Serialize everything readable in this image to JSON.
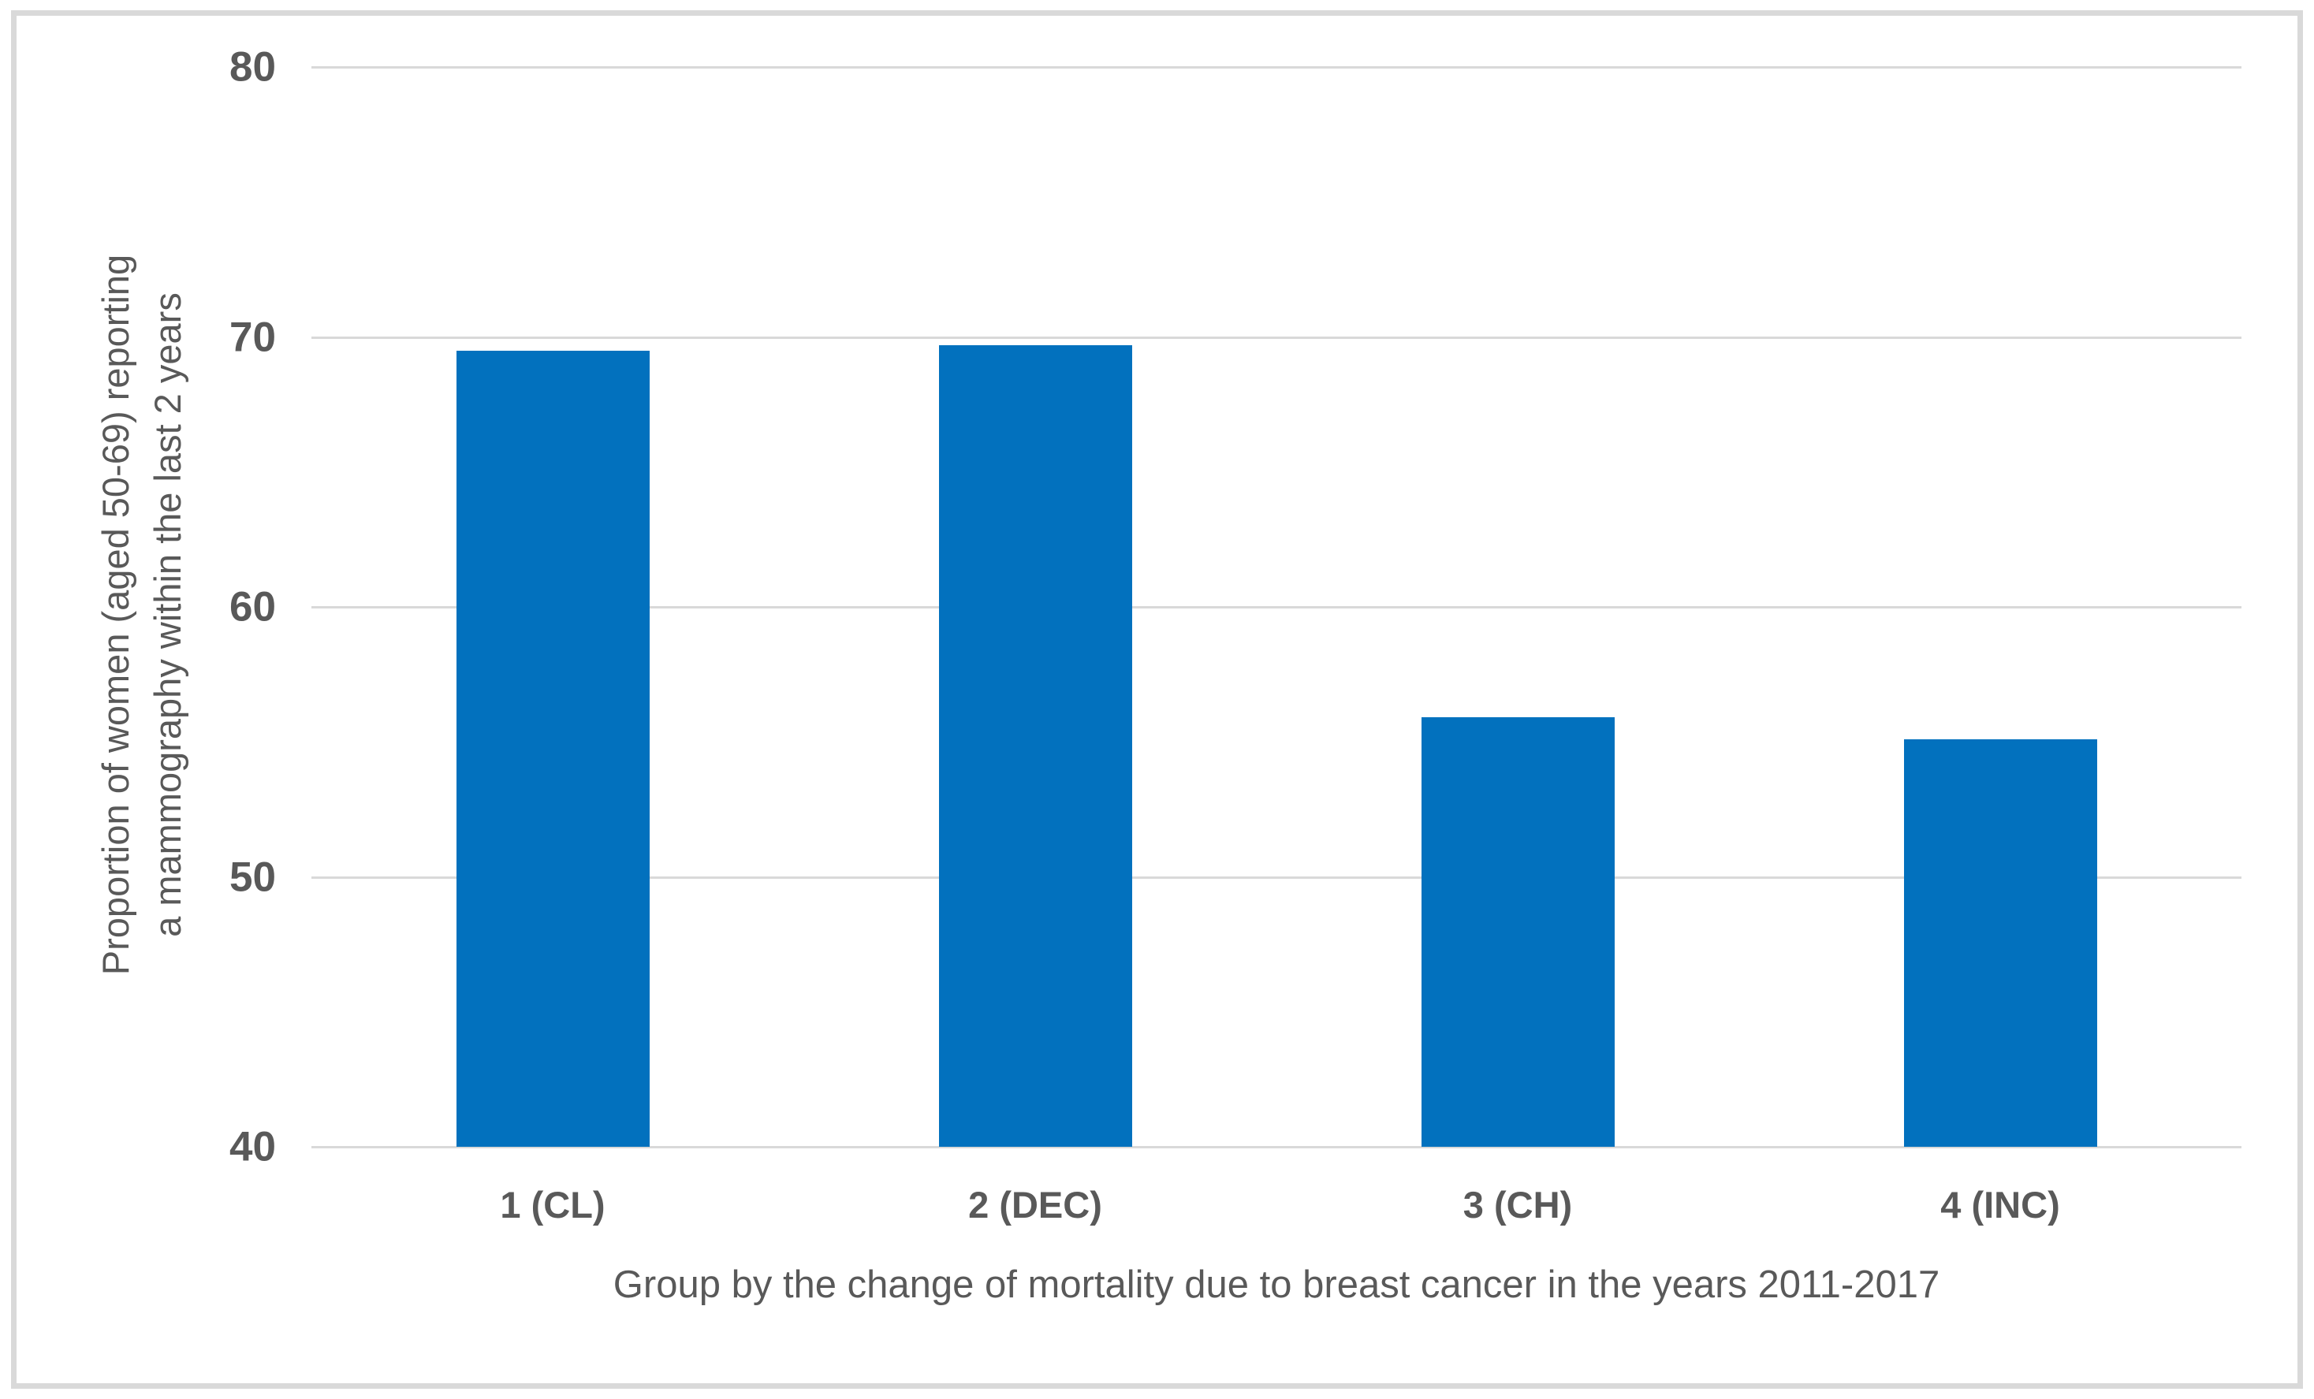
{
  "chart": {
    "y_axis_title_line1": "Proportion of women (aged 50-69) reporting",
    "y_axis_title_line2": "a mammography within the last 2 years",
    "x_axis_title": "Group by the change of mortality due to breast cancer in the years 2011-2017"
  },
  "chart_data": {
    "type": "bar",
    "categories": [
      "1 (CL)",
      "2 (DEC)",
      "3 (CH)",
      "4 (INC)"
    ],
    "values": [
      69.5,
      69.7,
      55.9,
      55.1
    ],
    "title": "",
    "xlabel": "Group by the change of mortality due to breast cancer in the years 2011-2017",
    "ylabel": "Proportion of women (aged 50-69) reporting a mammography within the last 2 years",
    "ylabel_lines": [
      "Proportion of women (aged 50-69) reporting",
      "a mammography within the last 2 years"
    ],
    "ylim": [
      40,
      80
    ],
    "yticks": [
      40,
      50,
      60,
      70,
      80
    ],
    "grid": true,
    "legend_position": "none",
    "colors": {
      "bar": "#0271BE",
      "gridline": "#D9D9D9",
      "text": "#595959",
      "frame_border": "#D9D9D9",
      "background": "#FFFFFF"
    }
  }
}
